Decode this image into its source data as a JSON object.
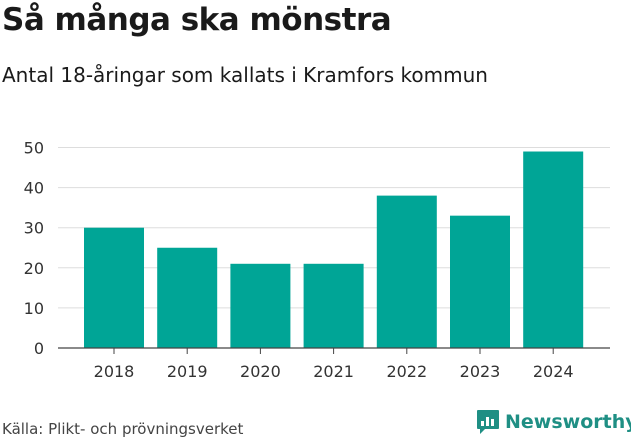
{
  "header": {
    "title": "Så många ska mönstra",
    "subtitle": "Antal 18-åringar som kallats i Kramfors kommun"
  },
  "footer": {
    "source": "Källa: Plikt- och prövningsverket",
    "brand": "Newsworthy"
  },
  "colors": {
    "bar": "#00a596",
    "grid": "#dddddd",
    "axis": "#444444",
    "brand": "#1f8f84"
  },
  "chart_data": {
    "type": "bar",
    "title": "Så många ska mönstra",
    "subtitle": "Antal 18-åringar som kallats i Kramfors kommun",
    "categories": [
      "2018",
      "2019",
      "2020",
      "2021",
      "2022",
      "2023",
      "2024"
    ],
    "values": [
      30,
      25,
      21,
      21,
      38,
      33,
      49
    ],
    "yticks": [
      0,
      10,
      20,
      30,
      40,
      50
    ],
    "ylim": [
      0,
      50
    ],
    "xlabel": "",
    "ylabel": "",
    "grid": true
  }
}
